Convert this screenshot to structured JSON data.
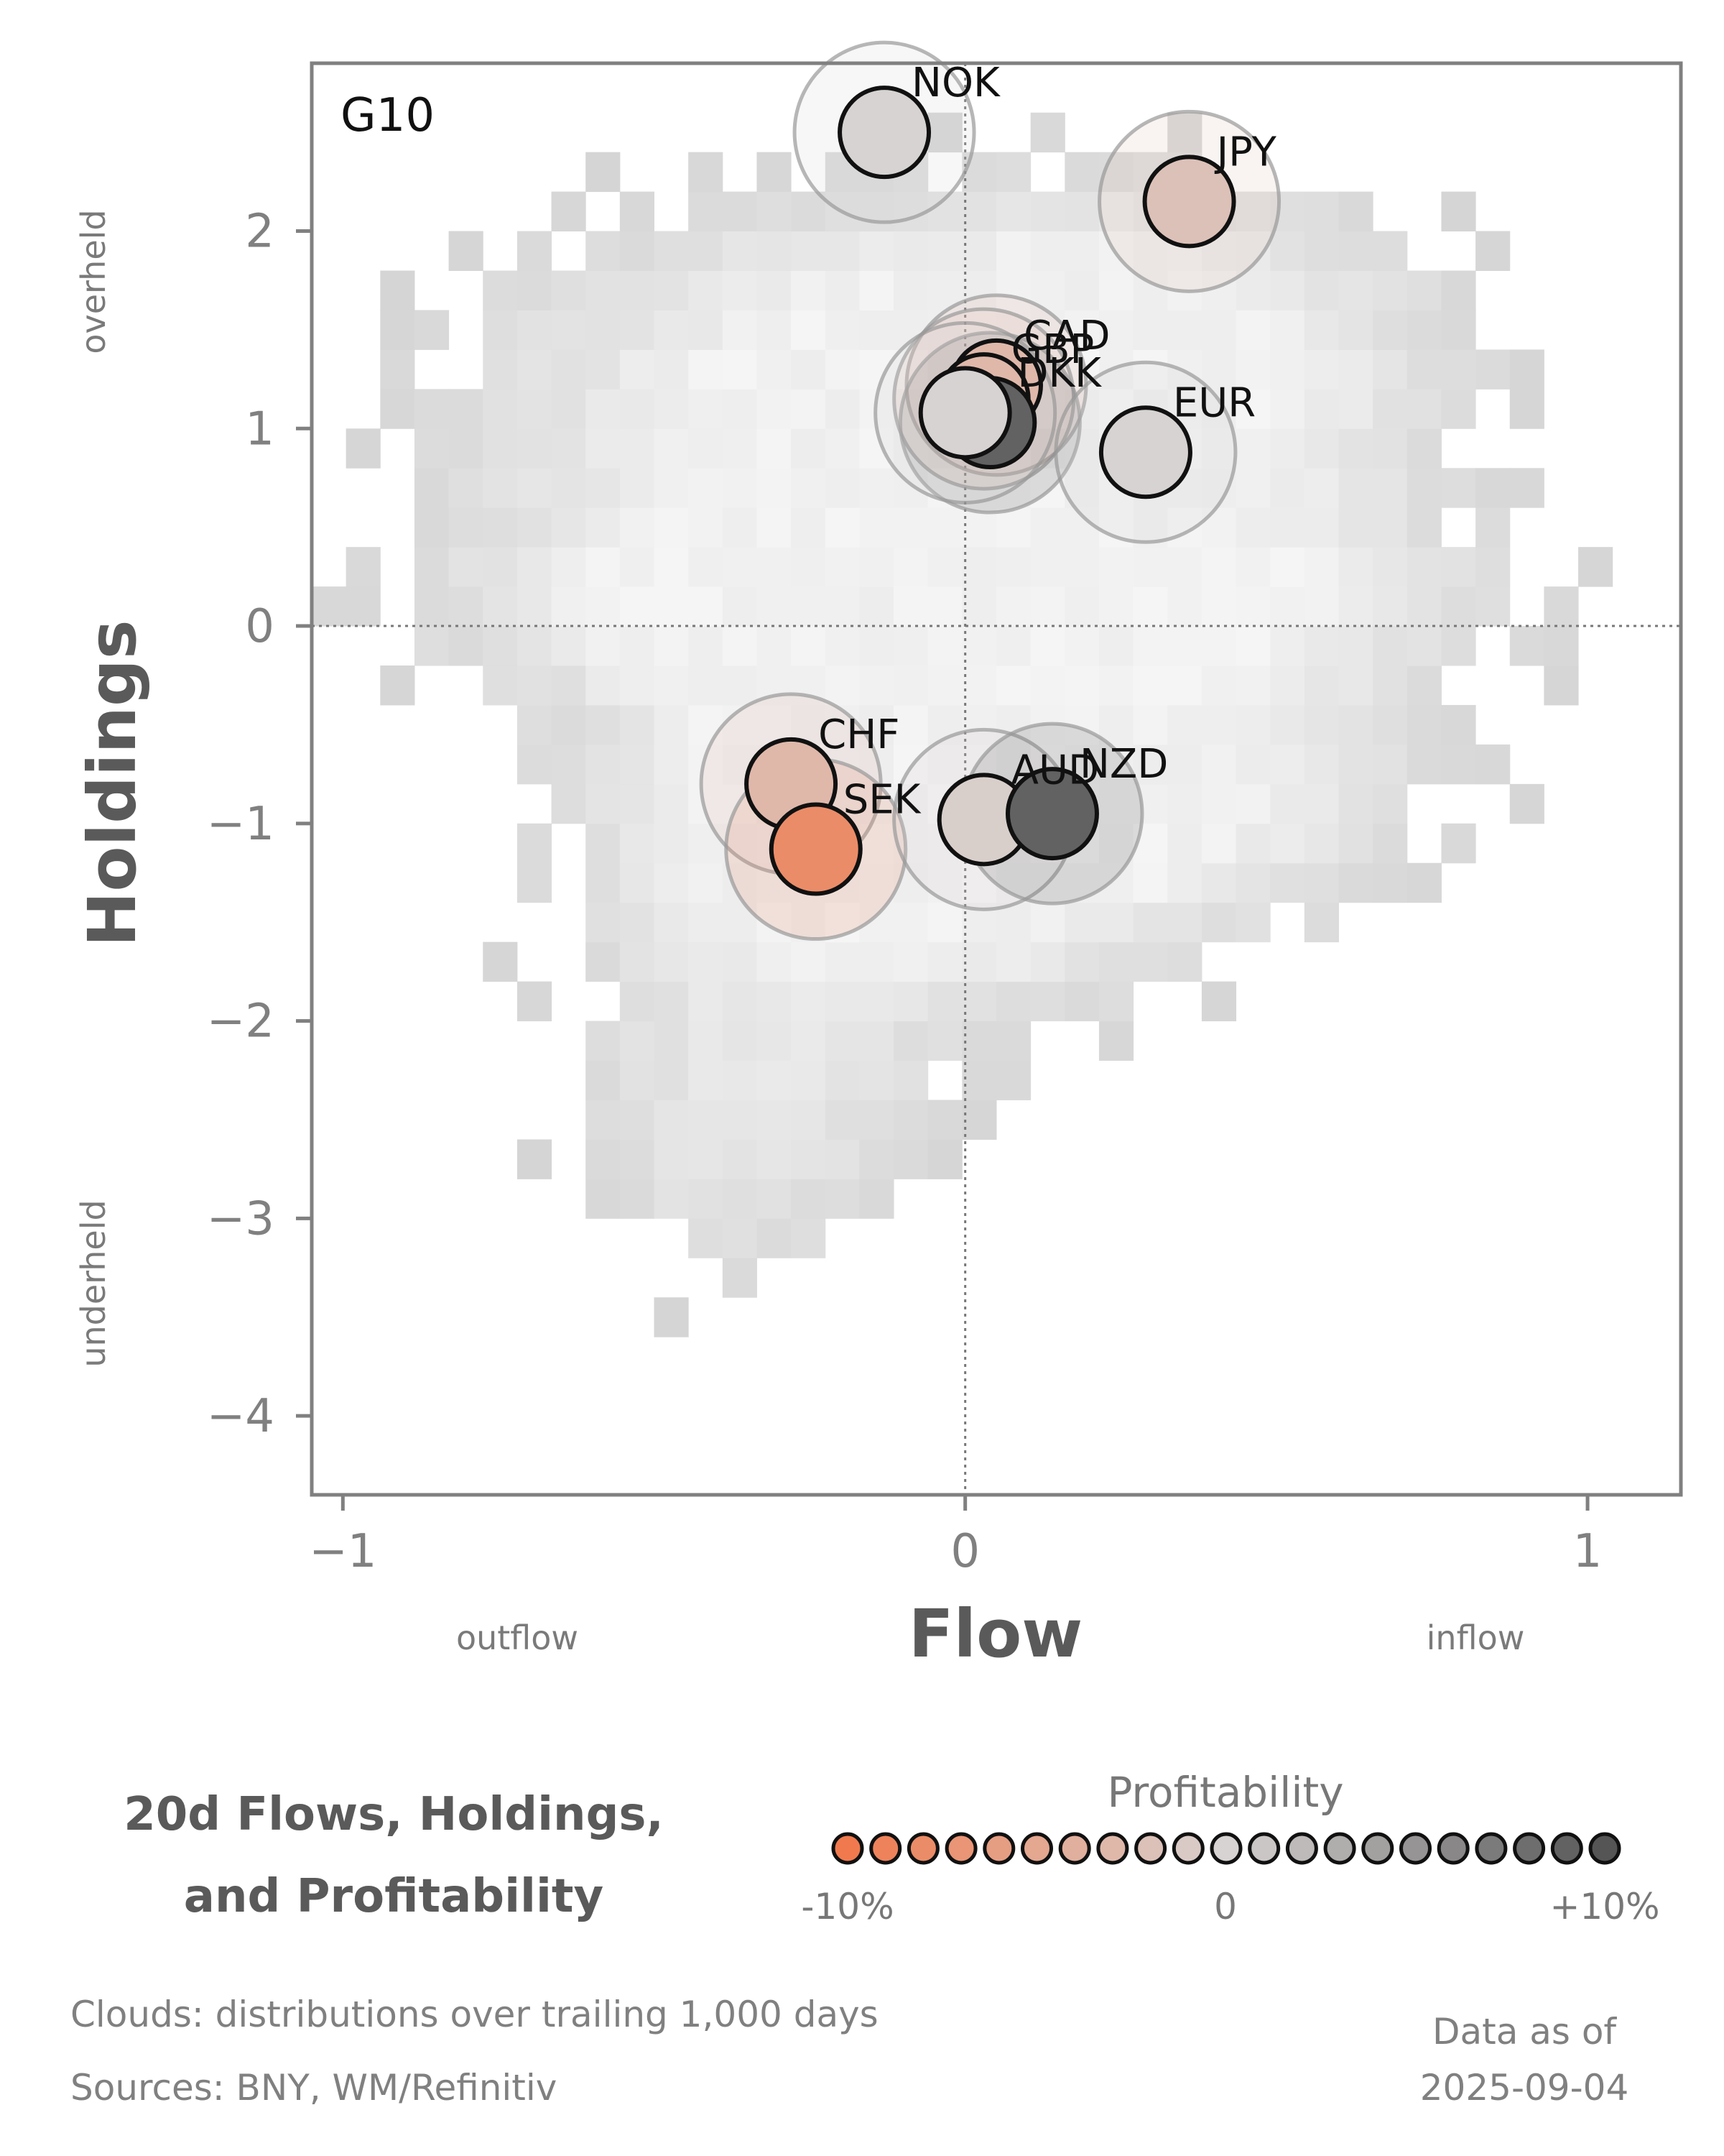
{
  "chart_data": {
    "type": "scatter",
    "panel_label": "G10",
    "xlabel": "Flow",
    "ylabel": "Holdings",
    "xlim": [
      -1.05,
      1.15
    ],
    "ylim": [
      -4.4,
      2.85
    ],
    "x_ticks": [
      -1,
      0,
      1
    ],
    "y_ticks": [
      -4,
      -3,
      -2,
      -1,
      0,
      1,
      2
    ],
    "x_tick_labels": [
      "−1",
      "0",
      "1"
    ],
    "y_tick_labels": [
      "−4",
      "−3",
      "−2",
      "−1",
      "0",
      "1",
      "2"
    ],
    "x_side_labels": {
      "left": "outflow",
      "right": "inflow"
    },
    "y_side_labels": {
      "top": "overheld",
      "bottom": "underheld"
    },
    "reference_lines": {
      "x": 0,
      "y": 0
    },
    "points": [
      {
        "name": "NOK",
        "x": -0.13,
        "y": 2.5,
        "profit": 0
      },
      {
        "name": "JPY",
        "x": 0.36,
        "y": 2.15,
        "profit": -2
      },
      {
        "name": "CAD",
        "x": 0.05,
        "y": 1.22,
        "profit": -3
      },
      {
        "name": "GBP",
        "x": 0.03,
        "y": 1.15,
        "profit": -3
      },
      {
        "name": "DKK",
        "x": 0.04,
        "y": 1.03,
        "profit": 9
      },
      {
        "name": "EUR",
        "x": 0.29,
        "y": 0.88,
        "profit": 0
      },
      {
        "name": "SEK_bg",
        "x": 0.0,
        "y": 1.08,
        "profit": 0,
        "label": false
      },
      {
        "name": "CHF",
        "x": -0.28,
        "y": -0.8,
        "profit": -3
      },
      {
        "name": "SEK",
        "x": -0.24,
        "y": -1.13,
        "profit": -8
      },
      {
        "name": "AUD",
        "x": 0.03,
        "y": -0.98,
        "profit": -0.5
      },
      {
        "name": "NZD",
        "x": 0.14,
        "y": -0.95,
        "profit": 9
      }
    ],
    "label_offsets_note": ""
  },
  "colors": {
    "negative": "#f07a4e",
    "neutral": "#d7d3d2",
    "positive": "#555555",
    "axis": "#808080",
    "cloud": "#c8c8c8"
  },
  "title": {
    "line1": "20d Flows, Holdings,",
    "line2": "and Profitability"
  },
  "legend": {
    "title": "Profitability",
    "min_label": "-10%",
    "mid_label": "0",
    "max_label": "+10%",
    "min": -10,
    "max": 10,
    "steps": 21
  },
  "footer": {
    "clouds": "Clouds:  distributions over trailing 1,000 days",
    "sources": "Sources:  BNY, WM/Refinitiv",
    "data_as_of_label": "Data as of",
    "data_as_of_date": "2025-09-04"
  }
}
